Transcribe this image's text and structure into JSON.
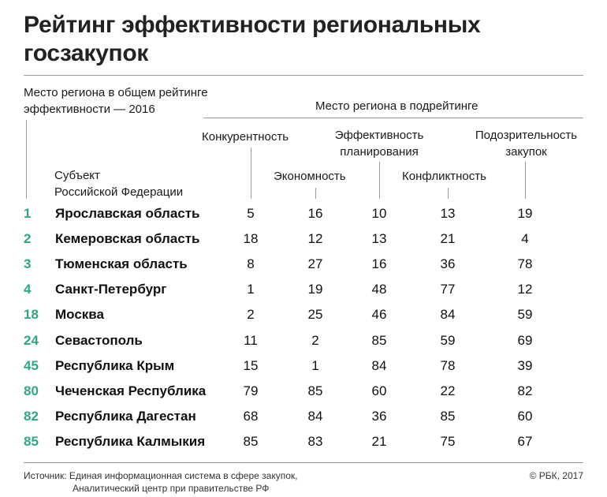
{
  "title_line1": "Рейтинг эффективности региональных",
  "title_line2": "госзакупок",
  "header": {
    "overall_line1": "Место региона в общем рейтинге",
    "overall_line2": "эффективности — 2016",
    "sub_group": "Место региона в подрейтинге",
    "subject_line1": "Субъект",
    "subject_line2": "Российской Федерации",
    "col_competition": "Конкурентность",
    "col_economy": "Экономность",
    "col_planning_line1": "Эффективность",
    "col_planning_line2": "планирования",
    "col_conflict": "Конфликтность",
    "col_suspicion_line1": "Подозрительность",
    "col_suspicion_line2": "закупок"
  },
  "colors": {
    "rank": "#2aaa7e",
    "rule": "#9a9a9a"
  },
  "chart_data": {
    "type": "table",
    "columns": [
      "Место региона в общем рейтинге эффективности — 2016",
      "Субъект Российской Федерации",
      "Конкурентность",
      "Экономность",
      "Эффективность планирования",
      "Конфликтность",
      "Подозрительность закупок"
    ],
    "rows": [
      {
        "rank": "1",
        "region": "Ярославская область",
        "values": [
          "5",
          "16",
          "10",
          "13",
          "19"
        ]
      },
      {
        "rank": "2",
        "region": "Кемеровская область",
        "values": [
          "18",
          "12",
          "13",
          "21",
          "4"
        ]
      },
      {
        "rank": "3",
        "region": "Тюменская область",
        "values": [
          "8",
          "27",
          "16",
          "36",
          "78"
        ]
      },
      {
        "rank": "4",
        "region": "Санкт-Петербург",
        "values": [
          "1",
          "19",
          "48",
          "77",
          "12"
        ]
      },
      {
        "rank": "18",
        "region": "Москва",
        "values": [
          "2",
          "25",
          "46",
          "84",
          "59"
        ]
      },
      {
        "rank": "24",
        "region": "Севастополь",
        "values": [
          "11",
          "2",
          "85",
          "59",
          "69"
        ]
      },
      {
        "rank": "45",
        "region": "Республика Крым",
        "values": [
          "15",
          "1",
          "84",
          "78",
          "39"
        ]
      },
      {
        "rank": "80",
        "region": "Чеченская Республика",
        "values": [
          "79",
          "85",
          "60",
          "22",
          "82"
        ]
      },
      {
        "rank": "82",
        "region": "Республика Дагестан",
        "values": [
          "68",
          "84",
          "36",
          "85",
          "60"
        ]
      },
      {
        "rank": "85",
        "region": "Республика Калмыкия",
        "values": [
          "85",
          "83",
          "21",
          "75",
          "67"
        ]
      }
    ]
  },
  "footer": {
    "source_line1": "Источник: Единая информационная система в сфере закупок,",
    "source_line2": "Аналитический центр при правительстве РФ",
    "copyright": "© РБК, 2017"
  }
}
